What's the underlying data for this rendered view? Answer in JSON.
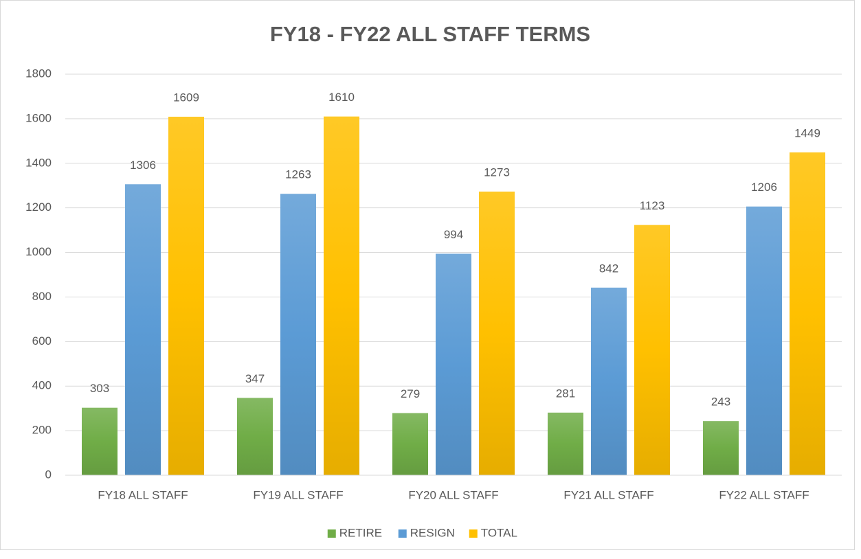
{
  "chart_data": {
    "type": "bar",
    "title": "FY18 - FY22 ALL STAFF TERMS",
    "categories": [
      "FY18 ALL STAFF",
      "FY19 ALL STAFF",
      "FY20 ALL STAFF",
      "FY21 ALL STAFF",
      "FY22 ALL STAFF"
    ],
    "series": [
      {
        "name": "RETIRE",
        "color": "#70ad47",
        "values": [
          303,
          347,
          279,
          281,
          243
        ]
      },
      {
        "name": "RESIGN",
        "color": "#5b9bd5",
        "values": [
          1306,
          1263,
          994,
          842,
          1206
        ]
      },
      {
        "name": "TOTAL",
        "color": "#ffc000",
        "values": [
          1609,
          1610,
          1273,
          1123,
          1449
        ]
      }
    ],
    "ylim": [
      0,
      1800
    ],
    "yticks": [
      0,
      200,
      400,
      600,
      800,
      1000,
      1200,
      1400,
      1600,
      1800
    ],
    "grid": true,
    "legend": "bottom"
  }
}
